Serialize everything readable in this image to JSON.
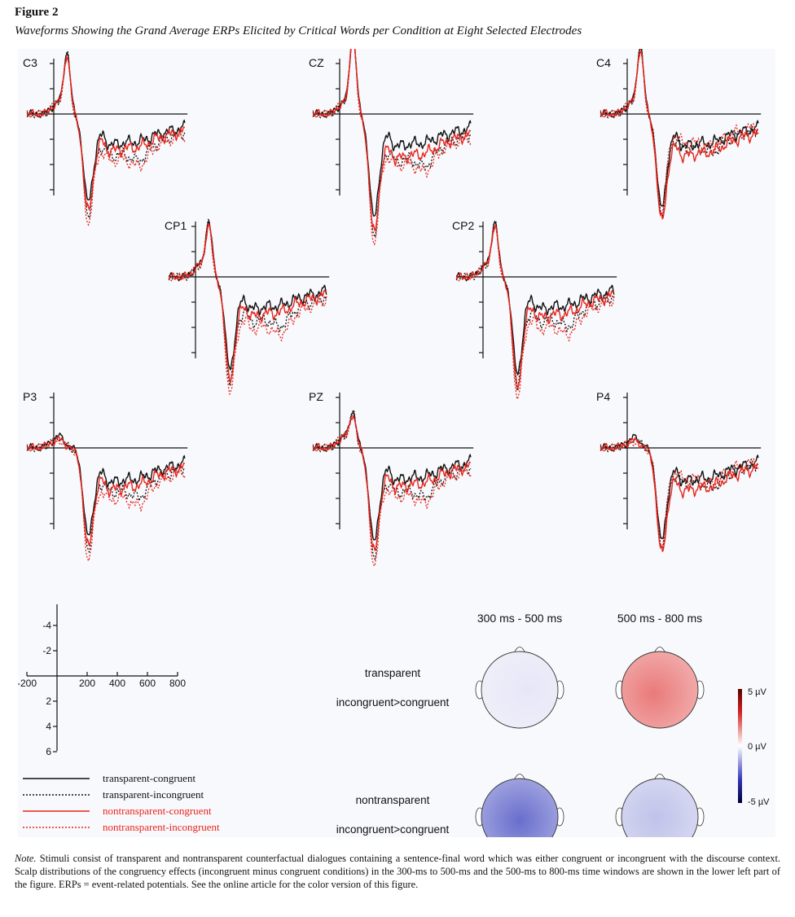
{
  "figure_label": "Figure 2",
  "figure_title": "Waveforms Showing the Grand Average ERPs Elicited by Critical Words per Condition at Eight Selected Electrodes",
  "note_lead": "Note.",
  "note_text": "Stimuli consist of transparent and nontransparent counterfactual dialogues containing a sentence-final word which was either congruent or incongruent with the discourse context. Scalp distributions of the congruency effects (incongruent minus congruent conditions) in the 300-ms to 500-ms and the 500-ms to 800-ms time windows are shown in the lower left part of the figure. ERPs = event-related potentials. See the online article for the color version of this figure.",
  "chart_data": {
    "type": "line",
    "x_unit": "ms",
    "y_unit": "µV",
    "negative_up": true,
    "xlim": [
      -200,
      1000
    ],
    "ylim": [
      -5,
      7
    ],
    "scale_axis": {
      "x_ticks": [
        "-200",
        "200",
        "400",
        "600",
        "800"
      ],
      "y_ticks": [
        "-4",
        "-2",
        "2",
        "4",
        "6"
      ]
    },
    "series": [
      {
        "name": "transparent-congruent",
        "color": "#111111",
        "dash": "solid"
      },
      {
        "name": "transparent-incongruent",
        "color": "#111111",
        "dash": "dotted"
      },
      {
        "name": "nontransparent-congruent",
        "color": "#e8241c",
        "dash": "solid"
      },
      {
        "name": "nontransparent-incongruent",
        "color": "#e8241c",
        "dash": "dotted"
      }
    ],
    "electrodes": [
      {
        "label": "C3",
        "peak_time": 100,
        "peak_amp": -4.5,
        "trough_amp": 4.8,
        "late_amp": [
          2.5,
          3.4,
          3.0,
          3.8
        ]
      },
      {
        "label": "CZ",
        "peak_time": 100,
        "peak_amp": -6.0,
        "trough_amp": 6.0,
        "late_amp": [
          2.6,
          3.8,
          3.6,
          4.2
        ]
      },
      {
        "label": "C4",
        "peak_time": 100,
        "peak_amp": -5.0,
        "trough_amp": 5.2,
        "late_amp": [
          2.6,
          2.8,
          3.4,
          2.4
        ]
      },
      {
        "label": "CP1",
        "peak_time": 100,
        "peak_amp": -4.0,
        "trough_amp": 5.0,
        "late_amp": [
          2.6,
          3.6,
          3.2,
          4.2
        ]
      },
      {
        "label": "CP2",
        "peak_time": 90,
        "peak_amp": -4.0,
        "trough_amp": 5.4,
        "late_amp": [
          2.6,
          3.6,
          3.3,
          4.2
        ]
      },
      {
        "label": "P3",
        "peak_time": 40,
        "peak_amp": -0.7,
        "trough_amp": 4.6,
        "late_amp": [
          2.8,
          3.6,
          3.4,
          4.2
        ]
      },
      {
        "label": "PZ",
        "peak_time": 100,
        "peak_amp": -2.5,
        "trough_amp": 5.2,
        "late_amp": [
          2.6,
          3.6,
          3.2,
          4.0
        ]
      },
      {
        "label": "P4",
        "peak_time": 60,
        "peak_amp": -0.6,
        "trough_amp": 5.0,
        "late_amp": [
          2.7,
          2.9,
          3.5,
          2.6
        ]
      }
    ],
    "topography": {
      "windows": [
        "300 ms - 500 ms",
        "500 ms - 800 ms"
      ],
      "rows": [
        {
          "label_1": "transparent",
          "label_2": "incongruent>congruent",
          "values": [
            -0.3,
            2.6
          ]
        },
        {
          "label_1": "nontransparent",
          "label_2": "incongruent>congruent",
          "values": [
            -3.2,
            -1.0
          ]
        }
      ],
      "colorbar": {
        "max_label": "5 µV",
        "mid_label": "0 µV",
        "min_label": "-5 µV",
        "range": [
          -5,
          5
        ]
      }
    }
  }
}
